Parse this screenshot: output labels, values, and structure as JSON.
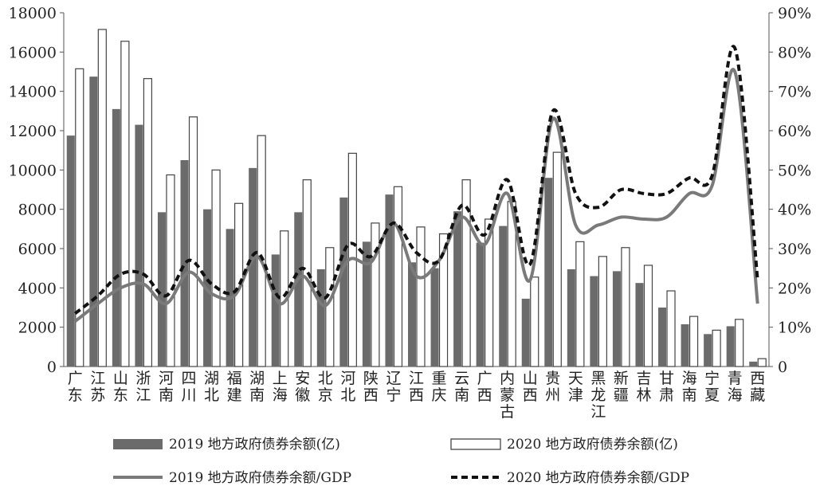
{
  "chart_data": {
    "type": "bar",
    "categories": [
      "广东",
      "江苏",
      "山东",
      "浙江",
      "河南",
      "四川",
      "湖北",
      "福建",
      "湖南",
      "上海",
      "安徽",
      "北京",
      "河北",
      "陕西",
      "辽宁",
      "江西",
      "重庆",
      "云南",
      "广西",
      "内蒙古",
      "山西",
      "贵州",
      "天津",
      "黑龙江",
      "新疆",
      "吉林",
      "甘肃",
      "海南",
      "宁夏",
      "青海",
      "西藏"
    ],
    "left_axis": {
      "min": 0,
      "max": 18000,
      "ticks": [
        "0",
        "2000",
        "4000",
        "6000",
        "8000",
        "10000",
        "12000",
        "14000",
        "16000",
        "18000"
      ]
    },
    "right_axis": {
      "min": 0,
      "max": 90,
      "ticks": [
        "0",
        "10%",
        "20%",
        "30%",
        "40%",
        "50%",
        "60%",
        "70%",
        "80%",
        "90%"
      ]
    },
    "series": [
      {
        "name": "2019 地方政府债券余额(亿)",
        "kind": "bar",
        "color": "#6b6b6b",
        "values": [
          11750,
          14750,
          13100,
          12300,
          7850,
          10500,
          8000,
          7000,
          10100,
          5700,
          7850,
          4950,
          8600,
          6350,
          8750,
          5300,
          5000,
          7900,
          6300,
          7150,
          3450,
          9600,
          4950,
          4600,
          4850,
          4250,
          3000,
          2150,
          1650,
          2050,
          250
        ]
      },
      {
        "name": "2020 地方政府债券余额(亿)",
        "kind": "bar",
        "color": "#ffffff",
        "values": [
          15150,
          17150,
          16550,
          14650,
          9750,
          12700,
          10000,
          8300,
          11750,
          6900,
          9500,
          6050,
          10850,
          7300,
          9150,
          7100,
          6750,
          9500,
          7500,
          8400,
          4550,
          10900,
          6350,
          5600,
          6050,
          5150,
          3850,
          2550,
          1850,
          2400,
          400
        ]
      },
      {
        "name": "2019 地方政府债券余额/GDP",
        "kind": "line",
        "color": "#7a7a7a",
        "values": [
          11.5,
          16,
          20,
          21,
          16,
          24,
          18.5,
          18,
          28,
          16,
          23,
          15.5,
          27,
          26.5,
          36.5,
          23,
          27,
          38,
          31,
          44,
          22,
          63,
          36,
          36,
          38,
          37.5,
          38,
          44,
          46,
          75,
          16
        ]
      },
      {
        "name": "2020 地方政府债券余额/GDP",
        "kind": "line",
        "color": "#111111",
        "values": [
          13.5,
          18,
          23.5,
          23.5,
          18,
          27,
          21,
          19,
          29,
          17.5,
          25,
          17.5,
          31,
          28,
          36.5,
          29,
          27,
          41,
          33.5,
          47.5,
          26,
          65,
          44,
          40.5,
          45,
          44,
          44,
          48,
          48.5,
          81,
          22
        ]
      }
    ],
    "legend_position": "bottom"
  }
}
